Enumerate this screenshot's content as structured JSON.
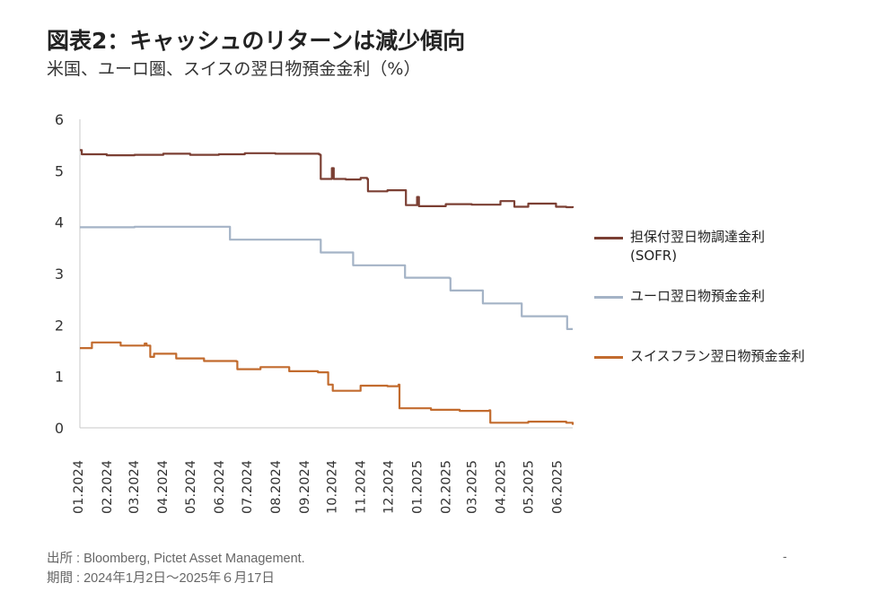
{
  "header": {
    "title": "図表2：キャッシュのリターンは減少傾向",
    "subtitle": "米国、ユーロ圏、スイスの翌日物預金金利（%）"
  },
  "footer": {
    "source": "出所 : Bloomberg, Pictet Asset Management.",
    "period": "期間 : 2024年1月2日～2025年６月17日",
    "dash": "-"
  },
  "chart_data": {
    "type": "line",
    "title": "",
    "xlabel": "",
    "ylabel": "",
    "ylim": [
      0,
      6
    ],
    "yticks": [
      "0",
      "1",
      "2",
      "3",
      "4",
      "5",
      "6"
    ],
    "xticks": [
      "01.2024",
      "02.2024",
      "03.2024",
      "04.2024",
      "05.2024",
      "06.2024",
      "07.2024",
      "08.2024",
      "09.2024",
      "10.2024",
      "11.2024",
      "12.2024",
      "01.2025",
      "02.2025",
      "03.2025",
      "04.2025",
      "05.2025",
      "06.2025"
    ],
    "x_range": [
      "2024-01-02",
      "2025-06-17"
    ],
    "grid": false,
    "legend_position": "right",
    "series": [
      {
        "name": "担保付翌日物調達金利\n(SOFR)",
        "color": "#7b3f33",
        "points": [
          [
            "2024-01-02",
            5.4
          ],
          [
            "2024-01-04",
            5.32
          ],
          [
            "2024-01-31",
            5.3
          ],
          [
            "2024-03-01",
            5.31
          ],
          [
            "2024-04-01",
            5.33
          ],
          [
            "2024-04-30",
            5.31
          ],
          [
            "2024-05-31",
            5.32
          ],
          [
            "2024-06-28",
            5.34
          ],
          [
            "2024-07-31",
            5.33
          ],
          [
            "2024-08-30",
            5.33
          ],
          [
            "2024-09-16",
            5.32
          ],
          [
            "2024-09-17",
            5.31
          ],
          [
            "2024-09-18",
            4.84
          ],
          [
            "2024-09-30",
            5.05
          ],
          [
            "2024-10-02",
            4.84
          ],
          [
            "2024-10-15",
            4.83
          ],
          [
            "2024-10-31",
            4.86
          ],
          [
            "2024-11-07",
            4.84
          ],
          [
            "2024-11-08",
            4.6
          ],
          [
            "2024-11-29",
            4.62
          ],
          [
            "2024-12-18",
            4.62
          ],
          [
            "2024-12-19",
            4.33
          ],
          [
            "2024-12-31",
            4.49
          ],
          [
            "2025-01-02",
            4.31
          ],
          [
            "2025-01-31",
            4.35
          ],
          [
            "2025-02-28",
            4.34
          ],
          [
            "2025-03-31",
            4.41
          ],
          [
            "2025-04-15",
            4.3
          ],
          [
            "2025-04-30",
            4.36
          ],
          [
            "2025-05-30",
            4.3
          ],
          [
            "2025-06-10",
            4.29
          ],
          [
            "2025-06-17",
            4.31
          ]
        ]
      },
      {
        "name": "ユーロ翌日物預金金利",
        "color": "#a4b3c6",
        "points": [
          [
            "2024-01-02",
            3.9
          ],
          [
            "2024-03-01",
            3.91
          ],
          [
            "2024-04-30",
            3.91
          ],
          [
            "2024-06-11",
            3.91
          ],
          [
            "2024-06-12",
            3.66
          ],
          [
            "2024-07-31",
            3.66
          ],
          [
            "2024-09-17",
            3.66
          ],
          [
            "2024-09-18",
            3.41
          ],
          [
            "2024-10-22",
            3.41
          ],
          [
            "2024-10-23",
            3.16
          ],
          [
            "2024-12-17",
            3.16
          ],
          [
            "2024-12-18",
            2.92
          ],
          [
            "2025-02-04",
            2.91
          ],
          [
            "2025-02-05",
            2.67
          ],
          [
            "2025-03-11",
            2.67
          ],
          [
            "2025-03-12",
            2.42
          ],
          [
            "2025-04-22",
            2.42
          ],
          [
            "2025-04-23",
            2.17
          ],
          [
            "2025-06-10",
            2.17
          ],
          [
            "2025-06-11",
            1.92
          ],
          [
            "2025-06-17",
            1.92
          ]
        ]
      },
      {
        "name": "スイスフラン翌日物預金金利",
        "color": "#c26b2e",
        "points": [
          [
            "2024-01-02",
            1.55
          ],
          [
            "2024-01-15",
            1.66
          ],
          [
            "2024-02-15",
            1.6
          ],
          [
            "2024-03-12",
            1.64
          ],
          [
            "2024-03-14",
            1.6
          ],
          [
            "2024-03-18",
            1.38
          ],
          [
            "2024-03-22",
            1.44
          ],
          [
            "2024-04-15",
            1.35
          ],
          [
            "2024-05-15",
            1.3
          ],
          [
            "2024-06-19",
            1.29
          ],
          [
            "2024-06-20",
            1.14
          ],
          [
            "2024-07-15",
            1.18
          ],
          [
            "2024-08-15",
            1.1
          ],
          [
            "2024-09-15",
            1.08
          ],
          [
            "2024-09-25",
            1.08
          ],
          [
            "2024-09-26",
            0.84
          ],
          [
            "2024-10-01",
            0.72
          ],
          [
            "2024-10-31",
            0.82
          ],
          [
            "2024-11-29",
            0.81
          ],
          [
            "2024-12-11",
            0.84
          ],
          [
            "2024-12-12",
            0.38
          ],
          [
            "2025-01-15",
            0.35
          ],
          [
            "2025-02-15",
            0.33
          ],
          [
            "2025-03-15",
            0.33
          ],
          [
            "2025-03-19",
            0.34
          ],
          [
            "2025-03-20",
            0.1
          ],
          [
            "2025-04-30",
            0.12
          ],
          [
            "2025-05-30",
            0.12
          ],
          [
            "2025-06-10",
            0.1
          ],
          [
            "2025-06-17",
            0.06
          ]
        ]
      }
    ]
  }
}
